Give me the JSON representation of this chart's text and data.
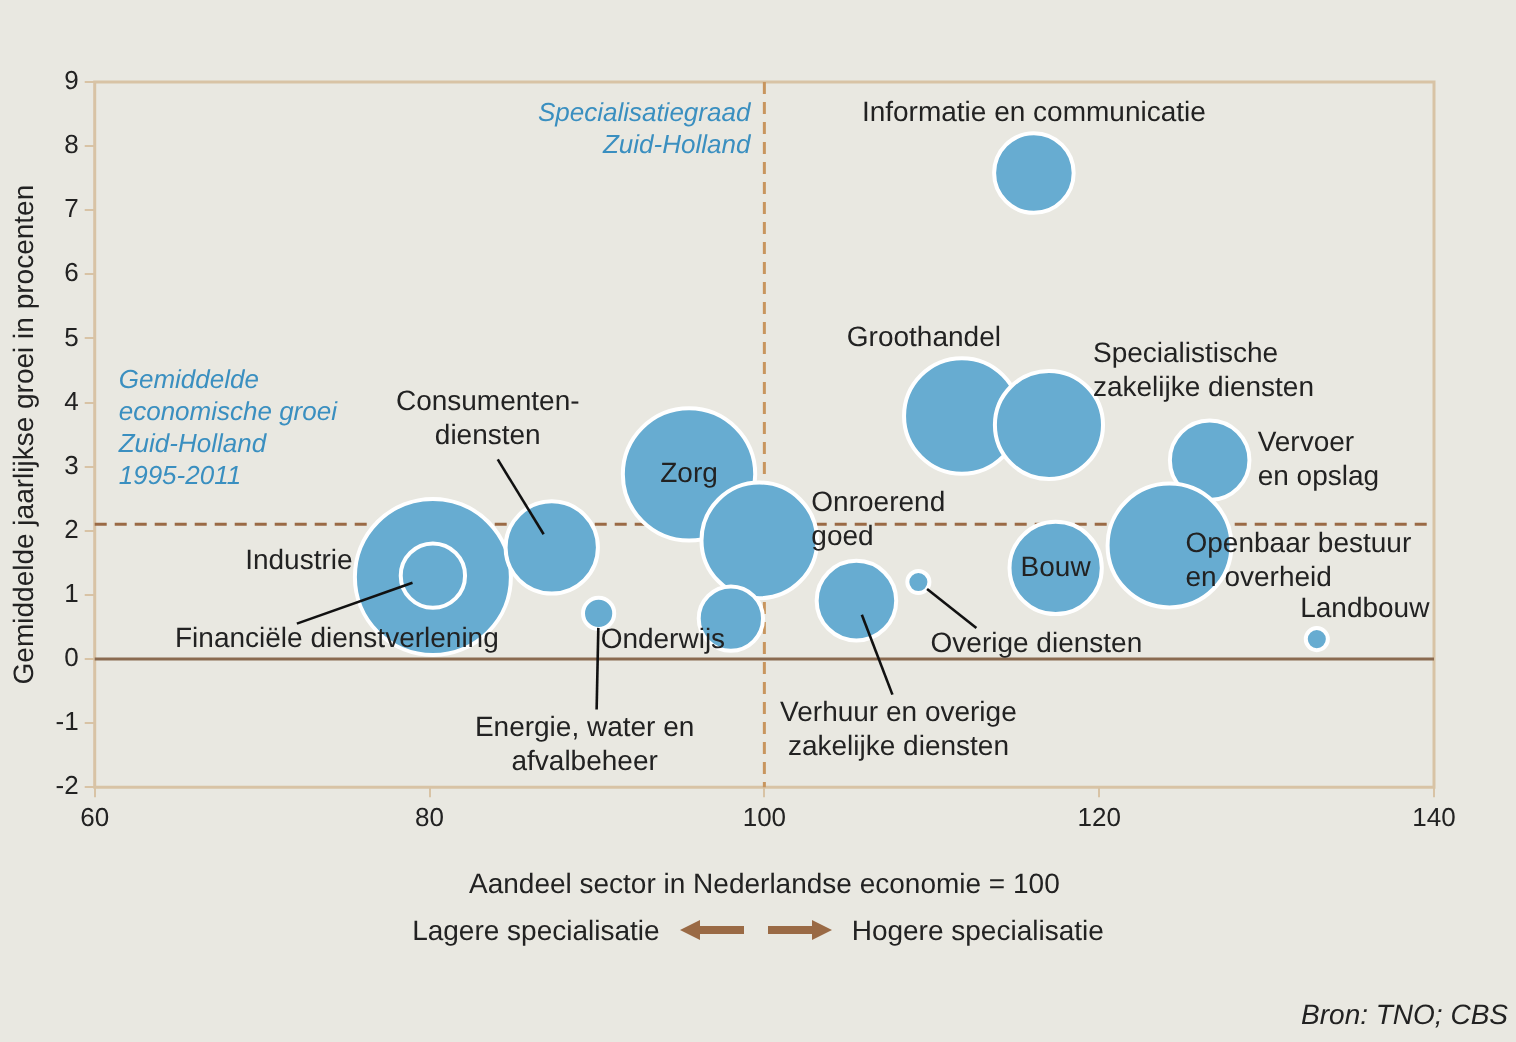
{
  "chart_data": {
    "type": "bubble",
    "xlabel": "Aandeel sector in Nederlandse economie = 100",
    "ylabel": "Gemiddelde jaarlijkse groei in procenten",
    "xlim": [
      60,
      140
    ],
    "xticks": [
      60,
      80,
      100,
      120,
      140
    ],
    "ylim": [
      -2,
      9
    ],
    "yticks": [
      -2,
      -1,
      0,
      1,
      2,
      3,
      4,
      5,
      6,
      7,
      8,
      9
    ],
    "grid": false,
    "legend": false,
    "series": [
      {
        "name": "Industrie",
        "color": "#67acd1",
        "x": [
          80.2
        ],
        "values": [
          1.28
        ],
        "sizes": [
          1
        ]
      },
      {
        "name": "Financiële dienstverlening",
        "color": "#67acd1",
        "x": [
          80.2
        ],
        "values": [
          1.3
        ],
        "sizes": [
          0.17
        ]
      },
      {
        "name": "Consumenten-diensten",
        "color": "#67acd1",
        "x": [
          87.3
        ],
        "values": [
          1.74
        ],
        "sizes": [
          0.35
        ]
      },
      {
        "name": "Energie, water en afvalbeheer",
        "color": "#67acd1",
        "x": [
          90.1
        ],
        "values": [
          0.71
        ],
        "sizes": [
          0.04
        ]
      },
      {
        "name": "Zorg",
        "color": "#67acd1",
        "x": [
          95.5
        ],
        "values": [
          2.88
        ],
        "sizes": [
          0.72
        ]
      },
      {
        "name": "Onroerend goed",
        "color": "#67acd1",
        "x": [
          99.7
        ],
        "values": [
          1.85
        ],
        "sizes": [
          0.55
        ]
      },
      {
        "name": "Onderwijs",
        "color": "#67acd1",
        "x": [
          98
        ],
        "values": [
          0.63
        ],
        "sizes": [
          0.17
        ]
      },
      {
        "name": "Informatie en communicatie",
        "color": "#67acd1",
        "x": [
          116.1
        ],
        "values": [
          7.58
        ],
        "sizes": [
          0.26
        ]
      },
      {
        "name": "Groothandel",
        "color": "#67acd1",
        "x": [
          111.8
        ],
        "values": [
          3.79
        ],
        "sizes": [
          0.55
        ]
      },
      {
        "name": "Specialistische zakelijke diensten",
        "color": "#67acd1",
        "x": [
          117
        ],
        "values": [
          3.65
        ],
        "sizes": [
          0.48
        ]
      },
      {
        "name": "Vervoer en opslag",
        "color": "#67acd1",
        "x": [
          126.6
        ],
        "values": [
          3.1
        ],
        "sizes": [
          0.26
        ]
      },
      {
        "name": "Verhuur en overige zakelijke diensten",
        "color": "#67acd1",
        "x": [
          105.5
        ],
        "values": [
          0.91
        ],
        "sizes": [
          0.26
        ]
      },
      {
        "name": "Overige diensten",
        "color": "#67acd1",
        "x": [
          109.2
        ],
        "values": [
          1.2
        ],
        "sizes": [
          0.02
        ]
      },
      {
        "name": "Bouw",
        "color": "#67acd1",
        "x": [
          117.4
        ],
        "values": [
          1.42
        ],
        "sizes": [
          0.35
        ]
      },
      {
        "name": "Openbaar bestuur en overheid",
        "color": "#67acd1",
        "x": [
          124.2
        ],
        "values": [
          1.77
        ],
        "sizes": [
          0.63
        ]
      },
      {
        "name": "Landbouw",
        "color": "#67acd1",
        "x": [
          133
        ],
        "values": [
          0.31
        ],
        "sizes": [
          0.02
        ]
      }
    ],
    "ref_lines": [
      {
        "axis": "y",
        "value": 2.1,
        "label": "Gemiddelde economische groei Zuid-Holland 1995-2011",
        "color": "#9a6a45",
        "line_style": "dashed"
      },
      {
        "axis": "x",
        "value": 100,
        "label": "Specialisatiegraad Zuid-Holland",
        "color": "#c8955e",
        "line_style": "dashed"
      },
      {
        "axis": "y",
        "value": 0,
        "color": "#8a6a50",
        "line_style": "solid"
      }
    ],
    "annotations": [
      "Lagere specialisatie",
      "Hogere specialisatie",
      "Bron: TNO; CBS"
    ]
  }
}
